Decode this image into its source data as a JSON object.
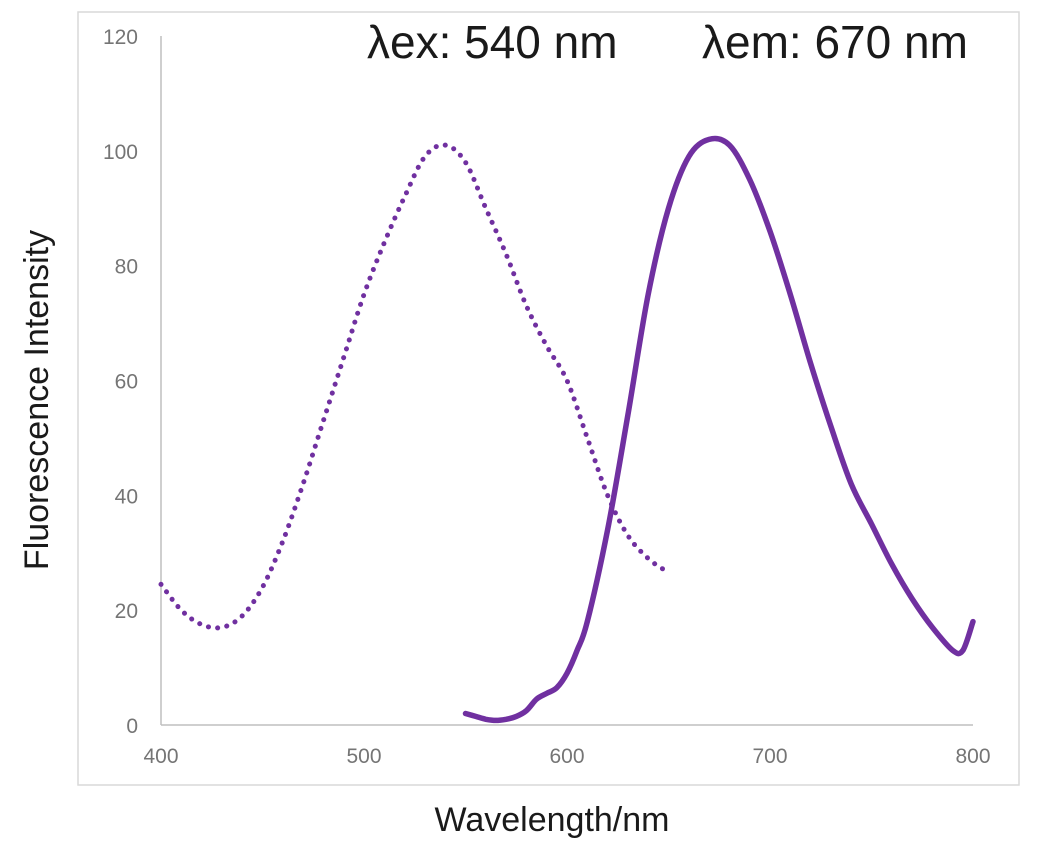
{
  "chart_data": {
    "type": "line",
    "xlabel": "Wavelength/nm",
    "ylabel": "Fluorescence Intensity",
    "xlim": [
      400,
      800
    ],
    "ylim": [
      0,
      120
    ],
    "x_ticks": [
      "400",
      "500",
      "600",
      "700",
      "800"
    ],
    "y_ticks": [
      "0",
      "20",
      "40",
      "60",
      "80",
      "100",
      "120"
    ],
    "grid": false,
    "legend": "none",
    "annotations": {
      "excitation": "λex: 540 nm",
      "emission": "λem: 670 nm"
    },
    "colors": {
      "series": "#7030a0",
      "frame": "#d9d9d9",
      "axis": "#bfbfbf"
    },
    "series": [
      {
        "style": "dotted",
        "x": [
          400,
          410,
          420,
          430,
          440,
          450,
          460,
          470,
          480,
          490,
          500,
          510,
          520,
          530,
          540,
          550,
          560,
          570,
          580,
          590,
          600,
          610,
          620,
          630,
          640,
          648
        ],
        "y": [
          24.5,
          20,
          17.5,
          17,
          19,
          24,
          32,
          42,
          53,
          64,
          75,
          84,
          92,
          99,
          101,
          98,
          90,
          82,
          73,
          66,
          60,
          50,
          40,
          33,
          29,
          27
        ]
      },
      {
        "style": "solid",
        "x": [
          550,
          555,
          560,
          565,
          570,
          575,
          580,
          585,
          590,
          595,
          600,
          605,
          610,
          620,
          630,
          640,
          650,
          660,
          670,
          680,
          690,
          700,
          710,
          720,
          730,
          740,
          750,
          760,
          770,
          780,
          790,
          795,
          800
        ],
        "y": [
          2,
          1.5,
          1,
          0.8,
          1,
          1.5,
          2.5,
          4.5,
          5.5,
          6.5,
          9,
          13,
          18,
          34,
          54,
          75,
          90,
          99,
          102,
          101,
          95,
          86,
          75,
          63,
          52,
          42,
          35,
          28,
          22,
          17,
          13,
          13,
          18
        ]
      }
    ]
  }
}
